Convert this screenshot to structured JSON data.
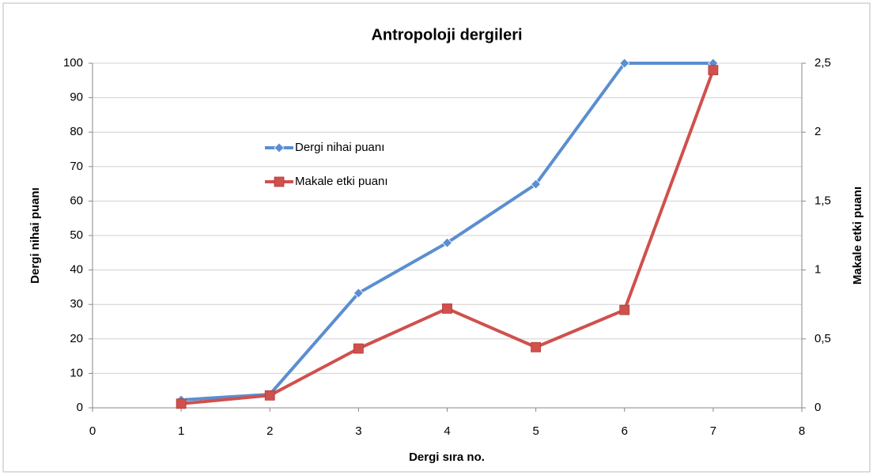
{
  "chart_data": {
    "type": "line",
    "title": "Antropoloji dergileri",
    "x_label": "Dergi sıra no.",
    "y_label": "Dergi nihai puanı",
    "y2_label": "Makale etki puanı",
    "x": [
      1,
      2,
      3,
      4,
      5,
      6,
      7
    ],
    "series": [
      {
        "name": "Dergi nihai puanı",
        "color": "#5b8ed0",
        "marker": "diamond",
        "values": [
          2.3,
          3.9,
          33.3,
          47.9,
          64.9,
          100,
          100
        ]
      },
      {
        "name": "Makale etki puanı",
        "color": "#d0504d",
        "marker": "square",
        "axis": "y2",
        "values": [
          0.03,
          0.09,
          0.43,
          0.72,
          0.44,
          0.71,
          2.45
        ]
      }
    ],
    "xlim": [
      0,
      8
    ],
    "xticks": [
      0,
      1,
      2,
      3,
      4,
      5,
      6,
      7,
      8
    ],
    "ylim": [
      0,
      100
    ],
    "yticks": [
      0,
      10,
      20,
      30,
      40,
      50,
      60,
      70,
      80,
      90,
      100
    ],
    "y2lim": [
      0,
      2.5
    ],
    "y2ticks": [
      0,
      {
        "value": 0.5,
        "label": "0,5"
      },
      1,
      {
        "value": 1.5,
        "label": "1,5"
      },
      2,
      {
        "value": 2.5,
        "label": "2,5"
      }
    ],
    "grid": true,
    "legend": "left"
  }
}
